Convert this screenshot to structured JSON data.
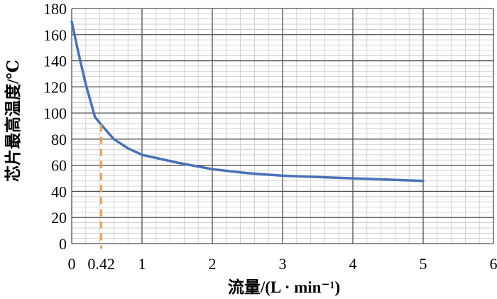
{
  "chart_data": {
    "type": "line",
    "xlabel": "流量/(L · min⁻¹)",
    "ylabel": "芯片最高温度/℃",
    "xlim": [
      0,
      6
    ],
    "ylim": [
      0,
      180
    ],
    "x_ticks": [
      {
        "value": 0,
        "label": "0"
      },
      {
        "value": 0.42,
        "label": "0.42"
      },
      {
        "value": 1,
        "label": "1"
      },
      {
        "value": 2,
        "label": "2"
      },
      {
        "value": 3,
        "label": "3"
      },
      {
        "value": 4,
        "label": "4"
      },
      {
        "value": 5,
        "label": "5"
      },
      {
        "value": 6,
        "label": "6"
      }
    ],
    "y_ticks": [
      {
        "value": 0,
        "label": "0"
      },
      {
        "value": 20,
        "label": "20"
      },
      {
        "value": 40,
        "label": "40"
      },
      {
        "value": 60,
        "label": "60"
      },
      {
        "value": 80,
        "label": "80"
      },
      {
        "value": 100,
        "label": "100"
      },
      {
        "value": 120,
        "label": "120"
      },
      {
        "value": 140,
        "label": "140"
      },
      {
        "value": 160,
        "label": "160"
      },
      {
        "value": 180,
        "label": "180"
      }
    ],
    "grid": true,
    "minor_grid": {
      "x_step": 0.2,
      "y_step": 4
    },
    "series": [
      {
        "color": "#4a72b8",
        "x": [
          0,
          0.1,
          0.2,
          0.33,
          0.42,
          0.6,
          0.8,
          1.0,
          1.5,
          2.0,
          2.5,
          3.0,
          3.5,
          4.0,
          4.5,
          5.0
        ],
        "y": [
          170,
          145,
          122,
          97,
          91,
          80,
          73,
          68,
          62,
          57,
          54,
          52,
          51,
          50,
          49,
          48
        ]
      }
    ],
    "marker_line": {
      "x": 0.42,
      "y": 91,
      "color": "#f0a04a",
      "style": "dashed"
    }
  }
}
